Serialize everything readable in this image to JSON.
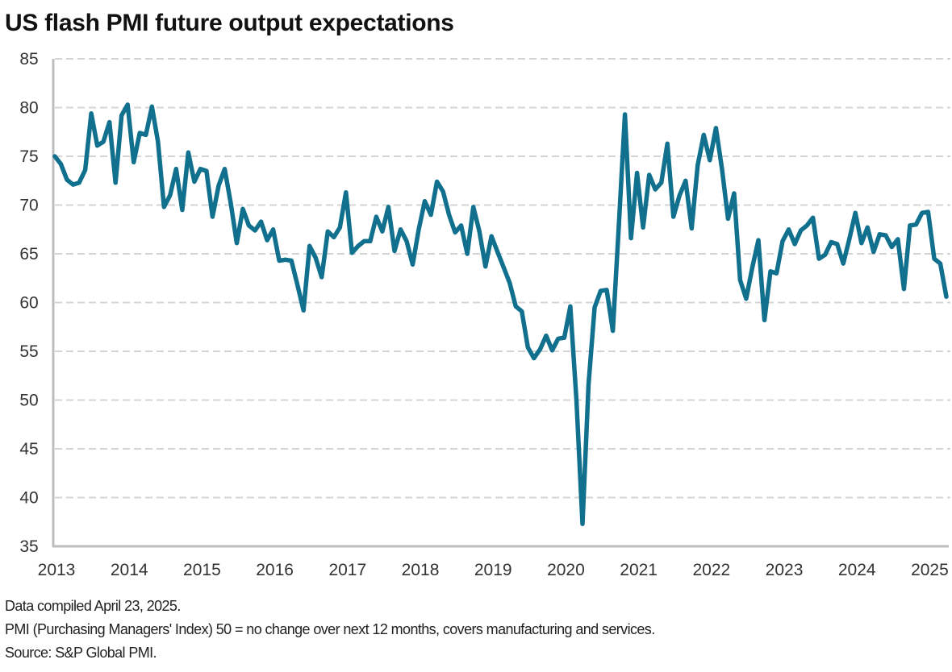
{
  "chart_data": {
    "type": "line",
    "title": "US flash PMI future output expectations",
    "xlabel": "",
    "ylabel": "",
    "ylim": [
      35,
      85
    ],
    "yticks": [
      35,
      40,
      45,
      50,
      55,
      60,
      65,
      70,
      75,
      80,
      85
    ],
    "xticks": [
      "2013",
      "2014",
      "2015",
      "2016",
      "2017",
      "2018",
      "2019",
      "2020",
      "2021",
      "2022",
      "2023",
      "2024",
      "2025"
    ],
    "x_start": "2013-01",
    "x_end": "2025-04",
    "frequency": "monthly",
    "grid": "horizontal dashed",
    "legend": "none",
    "series": [
      {
        "name": "US flash PMI future output expectations",
        "color": "#11708D",
        "values": [
          75.0,
          74.2,
          72.6,
          72.1,
          72.3,
          73.6,
          79.4,
          76.1,
          76.5,
          78.5,
          72.3,
          79.2,
          80.3,
          74.4,
          77.4,
          77.2,
          80.1,
          76.5,
          69.8,
          71.0,
          73.7,
          69.5,
          75.4,
          72.4,
          73.7,
          73.5,
          68.8,
          72.0,
          73.7,
          70.2,
          66.1,
          69.6,
          67.9,
          67.4,
          68.3,
          66.4,
          67.5,
          64.3,
          64.4,
          64.3,
          61.8,
          59.2,
          65.8,
          64.6,
          62.6,
          67.3,
          66.7,
          67.7,
          71.3,
          65.1,
          65.8,
          66.3,
          66.3,
          68.8,
          67.3,
          69.8,
          65.3,
          67.5,
          66.3,
          63.9,
          67.5,
          70.4,
          69.0,
          72.4,
          71.4,
          69.0,
          67.2,
          67.9,
          65.0,
          69.8,
          67.3,
          63.7,
          66.8,
          65.2,
          63.6,
          62.0,
          59.6,
          59.1,
          55.4,
          54.3,
          55.2,
          56.6,
          55.1,
          56.3,
          56.4,
          59.6,
          50.0,
          37.3,
          51.6,
          59.5,
          61.2,
          61.3,
          57.1,
          68.0,
          79.3,
          66.6,
          73.3,
          67.7,
          73.1,
          71.6,
          72.3,
          76.3,
          68.8,
          71.0,
          72.5,
          67.6,
          74.1,
          77.2,
          74.6,
          77.9,
          73.7,
          68.6,
          71.2,
          62.3,
          60.4,
          63.6,
          66.4,
          58.2,
          63.2,
          63.0,
          66.3,
          67.5,
          66.0,
          67.4,
          67.9,
          68.7,
          64.5,
          64.9,
          66.2,
          66.0,
          64.0,
          66.5,
          69.2,
          66.1,
          67.7,
          65.2,
          67.0,
          66.9,
          65.7,
          66.5,
          61.4,
          67.9,
          68.0,
          69.2,
          69.3,
          64.5,
          64.0,
          60.6
        ]
      }
    ]
  },
  "notes": {
    "compiled": "Data compiled April 23, 2025.",
    "definition": "PMI (Purchasing Managers' Index) 50 =  no change over next 12 months, covers manufacturing and services.",
    "source": "Source: S&P Global PMI."
  }
}
